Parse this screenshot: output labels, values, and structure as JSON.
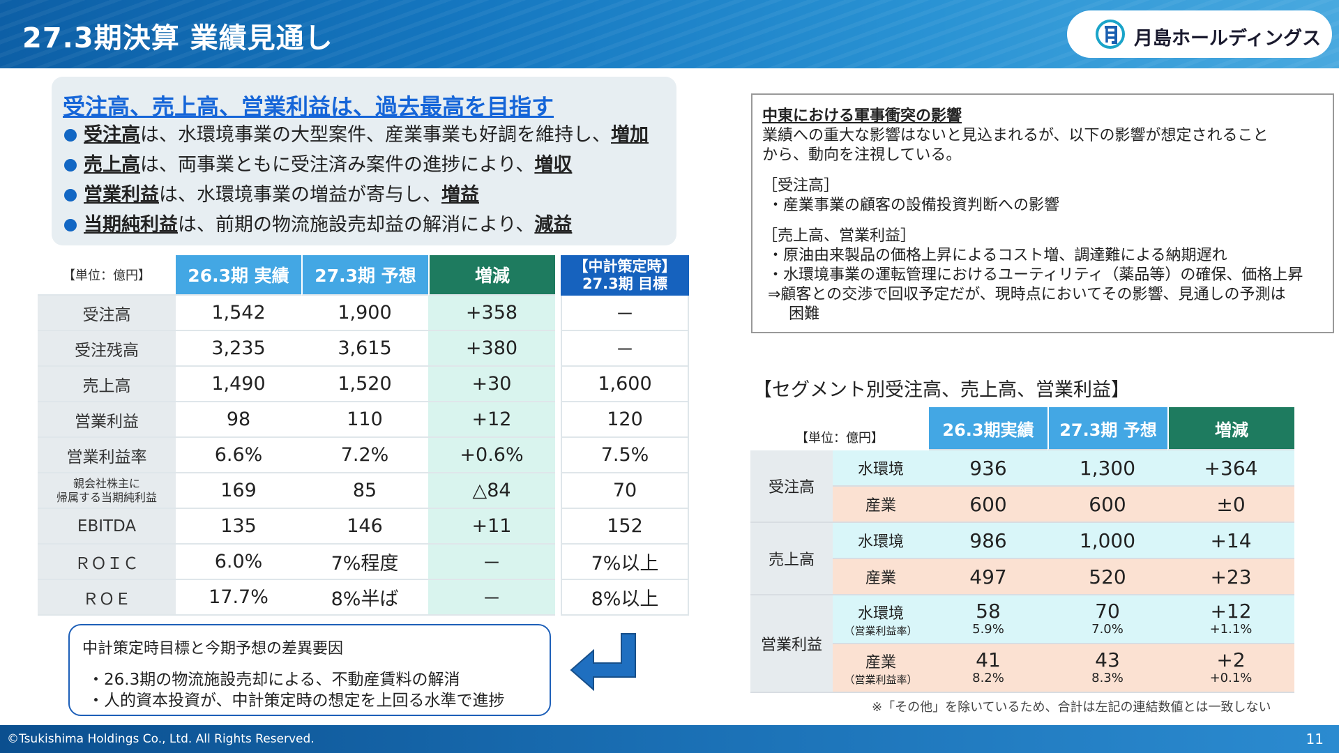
{
  "header": {
    "title": "27.3期決算 業績見通し",
    "logo_text": "月島ホールディングス"
  },
  "summary": {
    "title": "受注高、売上高、営業利益は、過去最高を目指す",
    "bullets": [
      {
        "term": "受注高",
        "mid": "は、水環境事業の大型案件、産業事業も好調を維持し、",
        "end": "増加"
      },
      {
        "term": "売上高",
        "mid": "は、両事業ともに受注済み案件の進捗により、",
        "end": "増収"
      },
      {
        "term": "営業利益",
        "mid": "は、水環境事業の増益が寄与し、",
        "end": "増益"
      },
      {
        "term": "当期純利益",
        "mid": "は、前期の物流施設売却益の解消により、",
        "end": "減益"
      }
    ]
  },
  "perf_table": {
    "unit": "【単位：億円】",
    "col_actual": "26.3期 実績",
    "col_forecast": "27.3期 予想",
    "col_change": "増減",
    "col_target_line1": "【中計策定時】",
    "col_target_line2": "27.3期 目標",
    "rows": [
      {
        "label": "受注高",
        "actual": "1,542",
        "forecast": "1,900",
        "change": "+358",
        "target": "－"
      },
      {
        "label": "受注残高",
        "actual": "3,235",
        "forecast": "3,615",
        "change": "+380",
        "target": "－"
      },
      {
        "label": "売上高",
        "actual": "1,490",
        "forecast": "1,520",
        "change": "+30",
        "target": "1,600"
      },
      {
        "label": "営業利益",
        "actual": "98",
        "forecast": "110",
        "change": "+12",
        "target": "120"
      },
      {
        "label": "営業利益率",
        "actual": "6.6%",
        "forecast": "7.2%",
        "change": "+0.6%",
        "target": "7.5%"
      },
      {
        "label_line1": "親会社株主に",
        "label_line2": "帰属する当期純利益",
        "actual": "169",
        "forecast": "85",
        "change": "△84",
        "target": "70"
      },
      {
        "label": "EBITDA",
        "actual": "135",
        "forecast": "146",
        "change": "+11",
        "target": "152"
      },
      {
        "label": "ＲＯＩＣ",
        "actual": "6.0%",
        "forecast": "7%程度",
        "change": "－",
        "target": "7%以上"
      },
      {
        "label": "ＲＯＥ",
        "actual": "17.7%",
        "forecast": "8%半ば",
        "change": "－",
        "target": "8%以上"
      }
    ]
  },
  "gap_box": {
    "title": "中計策定時目標と今期予想の差異要因",
    "lines": [
      "・26.3期の物流施設売却による、不動産賃料の解消",
      "・人的資本投資が、中計策定時の想定を上回る水準で進捗"
    ]
  },
  "mideast_box": {
    "title": "中東における軍事衝突の影響",
    "intro1": "業績への重大な影響はないと見込まれるが、以下の影響が想定されること",
    "intro2": "から、動向を注視している。",
    "sec1_head": "［受注高］",
    "sec1_item": "・産業事業の顧客の設備投資判断への影響",
    "sec2_head": "［売上高、営業利益］",
    "sec2_item1": "・原油由来製品の価格上昇によるコスト増、調達難による納期遅れ",
    "sec2_item2": "・水環境事業の運転管理におけるユーティリティ（薬品等）の確保、価格上昇",
    "sec2_item3": "⇒顧客との交渉で回収予定だが、現時点においてその影響、見通しの予測は",
    "sec2_item4": "困難"
  },
  "segment": {
    "title": "【セグメント別受注高、売上高、営業利益】",
    "unit": "【単位：億円】",
    "col_actual": "26.3期実績",
    "col_forecast": "27.3期 予想",
    "col_change": "増減",
    "groups": [
      {
        "name": "受注高",
        "rows": [
          {
            "seg": "水環境",
            "actual": "936",
            "forecast": "1,300",
            "change": "+364"
          },
          {
            "seg": "産業",
            "actual": "600",
            "forecast": "600",
            "change": "±0"
          }
        ]
      },
      {
        "name": "売上高",
        "rows": [
          {
            "seg": "水環境",
            "actual": "986",
            "forecast": "1,000",
            "change": "+14"
          },
          {
            "seg": "産業",
            "actual": "497",
            "forecast": "520",
            "change": "+23"
          }
        ]
      },
      {
        "name": "営業利益",
        "rows": [
          {
            "seg": "水環境",
            "seg_sub": "（営業利益率）",
            "actual": "58",
            "actual_rate": "5.9%",
            "forecast": "70",
            "forecast_rate": "7.0%",
            "change": "+12",
            "change_rate": "+1.1%"
          },
          {
            "seg": "産業",
            "seg_sub": "（営業利益率）",
            "actual": "41",
            "actual_rate": "8.2%",
            "forecast": "43",
            "forecast_rate": "8.3%",
            "change": "+2",
            "change_rate": "+0.1%"
          }
        ]
      }
    ],
    "note": "※「その他」を除いているため、合計は左記の連結数値とは一致しない"
  },
  "footer": {
    "copyright": "©Tsukishima Holdings Co., Ltd. All Rights Reserved.",
    "page": "11"
  }
}
